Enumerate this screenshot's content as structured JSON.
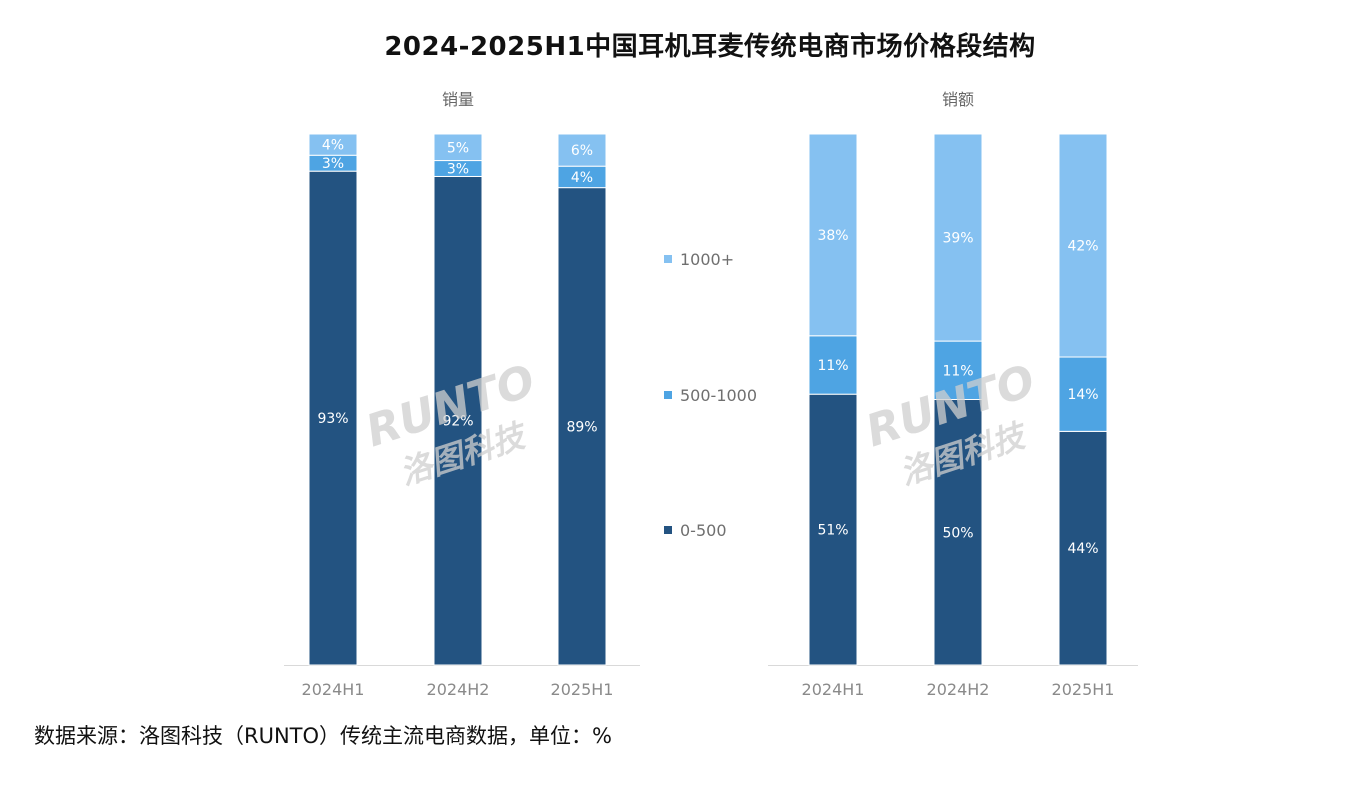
{
  "title": "2024-2025H1中国耳机耳麦传统电商市场价格段结构",
  "source": "数据来源：洛图科技（RUNTO）传统主流电商数据，单位：%",
  "watermark": {
    "latin": "RUNTO",
    "cjk": "洛图科技"
  },
  "colors": {
    "0-500": "#235381",
    "500-1000": "#4ea4e3",
    "1000+": "#85c1f1"
  },
  "legend": [
    "1000+",
    "500-1000",
    "0-500"
  ],
  "chart_data": [
    {
      "type": "bar",
      "stacked": true,
      "percent_stacked": true,
      "subtitle": "销量",
      "categories": [
        "2024H1",
        "2024H2",
        "2025H1"
      ],
      "series": [
        {
          "name": "0-500",
          "values": [
            93,
            92,
            89
          ],
          "labels": [
            "93%",
            "92%",
            "89%"
          ]
        },
        {
          "name": "500-1000",
          "values": [
            3,
            3,
            4
          ],
          "labels": [
            "3%",
            "3%",
            "4%"
          ]
        },
        {
          "name": "1000+",
          "values": [
            4,
            5,
            6
          ],
          "labels": [
            "4%",
            "5%",
            "6%"
          ]
        }
      ],
      "ylim": [
        0,
        100
      ],
      "grid": false
    },
    {
      "type": "bar",
      "stacked": true,
      "percent_stacked": true,
      "subtitle": "销额",
      "categories": [
        "2024H1",
        "2024H2",
        "2025H1"
      ],
      "series": [
        {
          "name": "0-500",
          "values": [
            51,
            50,
            44
          ],
          "labels": [
            "51%",
            "50%",
            "44%"
          ]
        },
        {
          "name": "500-1000",
          "values": [
            11,
            11,
            14
          ],
          "labels": [
            "11%",
            "11%",
            "14%"
          ]
        },
        {
          "name": "1000+",
          "values": [
            38,
            39,
            42
          ],
          "labels": [
            "38%",
            "39%",
            "42%"
          ]
        }
      ],
      "ylim": [
        0,
        100
      ],
      "grid": false
    }
  ]
}
